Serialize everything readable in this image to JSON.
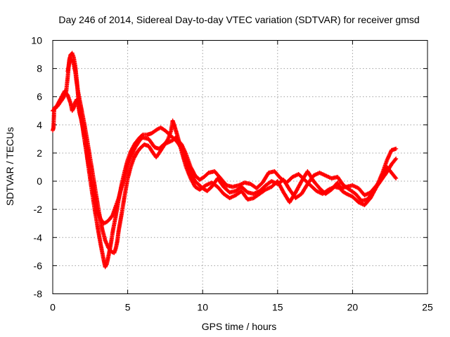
{
  "chart_data": {
    "type": "scatter",
    "title": "Day 246 of 2014, Sidereal Day-to-day VTEC variation (SDTVAR) for receiver gmsd",
    "xlabel": "GPS time / hours",
    "ylabel": "SDTVAR / TECUs",
    "xlim": [
      0,
      25
    ],
    "ylim": [
      -8,
      10
    ],
    "xticks": [
      0,
      5,
      10,
      15,
      20,
      25
    ],
    "yticks": [
      -8,
      -6,
      -4,
      -2,
      0,
      2,
      4,
      6,
      8,
      10
    ],
    "grid": true,
    "legend": "none",
    "marker": "+",
    "series": [
      {
        "name": "track-a",
        "color": "#ff0000",
        "points": [
          [
            0,
            3.6
          ],
          [
            0.05,
            3.8
          ],
          [
            0.1,
            5.2
          ],
          [
            0.3,
            5.3
          ],
          [
            0.5,
            5.6
          ],
          [
            0.7,
            5.9
          ],
          [
            0.9,
            6.4
          ],
          [
            1.0,
            7.4
          ],
          [
            1.1,
            8.6
          ],
          [
            1.2,
            9.0
          ],
          [
            1.3,
            9.1
          ],
          [
            1.4,
            8.8
          ],
          [
            1.5,
            8.2
          ],
          [
            1.6,
            7.2
          ],
          [
            1.7,
            6.0
          ],
          [
            1.8,
            5.0
          ],
          [
            2.0,
            3.8
          ],
          [
            2.2,
            2.4
          ],
          [
            2.4,
            0.9
          ],
          [
            2.6,
            -0.6
          ],
          [
            2.8,
            -2.0
          ],
          [
            3.0,
            -3.3
          ],
          [
            3.2,
            -4.5
          ],
          [
            3.4,
            -5.6
          ],
          [
            3.5,
            -6.1
          ],
          [
            3.6,
            -5.9
          ],
          [
            3.7,
            -5.4
          ],
          [
            3.8,
            -4.9
          ],
          [
            3.9,
            -4.3
          ],
          [
            4.0,
            -3.6
          ],
          [
            4.2,
            -2.5
          ],
          [
            4.4,
            -1.3
          ],
          [
            4.6,
            -0.2
          ],
          [
            4.8,
            0.7
          ],
          [
            5.0,
            1.5
          ],
          [
            5.2,
            2.1
          ],
          [
            5.5,
            2.7
          ],
          [
            5.8,
            3.1
          ],
          [
            6.0,
            3.3
          ],
          [
            6.3,
            3.3
          ],
          [
            6.6,
            3.4
          ],
          [
            7.0,
            3.7
          ],
          [
            7.2,
            3.8
          ],
          [
            7.5,
            3.6
          ],
          [
            7.8,
            3.3
          ],
          [
            8.0,
            3.1
          ],
          [
            8.3,
            2.8
          ],
          [
            8.6,
            2.3
          ],
          [
            8.9,
            1.5
          ],
          [
            9.2,
            0.6
          ],
          [
            9.5,
            0.0
          ],
          [
            9.8,
            -0.3
          ],
          [
            10.0,
            -0.5
          ],
          [
            10.3,
            -0.7
          ],
          [
            10.6,
            -0.4
          ],
          [
            11.0,
            0.2
          ],
          [
            11.4,
            -0.4
          ],
          [
            11.8,
            -0.8
          ],
          [
            12.2,
            -0.7
          ],
          [
            12.6,
            -0.4
          ],
          [
            13.0,
            -0.8
          ],
          [
            13.4,
            -0.9
          ],
          [
            13.8,
            -0.7
          ],
          [
            14.2,
            -0.3
          ],
          [
            14.6,
            0.0
          ],
          [
            15.0,
            -0.2
          ],
          [
            15.4,
            0.1
          ],
          [
            15.8,
            -0.6
          ],
          [
            16.2,
            -1.2
          ],
          [
            16.6,
            -0.9
          ],
          [
            17.0,
            -0.2
          ],
          [
            17.4,
            0.4
          ],
          [
            17.8,
            0.6
          ],
          [
            18.2,
            0.4
          ],
          [
            18.6,
            0.2
          ],
          [
            19.0,
            0.3
          ],
          [
            19.4,
            -0.3
          ],
          [
            19.8,
            -0.6
          ],
          [
            20.2,
            -0.9
          ],
          [
            20.6,
            -1.4
          ],
          [
            21.0,
            -1.3
          ],
          [
            21.4,
            -0.7
          ],
          [
            21.8,
            -0.1
          ],
          [
            22.2,
            0.5
          ],
          [
            22.6,
            1.2
          ],
          [
            22.9,
            1.6
          ]
        ]
      },
      {
        "name": "track-b",
        "color": "#ff0000",
        "points": [
          [
            0.0,
            5.0
          ],
          [
            0.2,
            5.2
          ],
          [
            0.4,
            5.6
          ],
          [
            0.6,
            6.0
          ],
          [
            0.8,
            6.4
          ],
          [
            1.0,
            6.1
          ],
          [
            1.2,
            5.5
          ],
          [
            1.3,
            5.0
          ],
          [
            1.4,
            5.2
          ],
          [
            1.5,
            5.6
          ],
          [
            1.6,
            5.8
          ],
          [
            1.7,
            5.4
          ],
          [
            1.8,
            4.8
          ],
          [
            1.9,
            4.4
          ],
          [
            2.0,
            3.9
          ],
          [
            2.1,
            3.1
          ],
          [
            2.2,
            2.4
          ],
          [
            2.4,
            1.2
          ],
          [
            2.6,
            0.0
          ],
          [
            2.8,
            -1.2
          ],
          [
            3.0,
            -2.2
          ],
          [
            3.2,
            -2.7
          ],
          [
            3.4,
            -3.0
          ],
          [
            3.6,
            -2.9
          ],
          [
            3.8,
            -2.7
          ],
          [
            4.0,
            -2.4
          ],
          [
            4.1,
            -2.1
          ],
          [
            4.2,
            -1.8
          ],
          [
            4.4,
            -1.2
          ],
          [
            4.6,
            -0.4
          ],
          [
            4.8,
            0.3
          ],
          [
            5.0,
            1.1
          ],
          [
            5.2,
            1.7
          ],
          [
            5.5,
            2.4
          ],
          [
            5.8,
            2.9
          ],
          [
            6.0,
            3.1
          ],
          [
            6.4,
            3.0
          ],
          [
            6.8,
            2.4
          ],
          [
            7.1,
            2.3
          ],
          [
            7.4,
            2.6
          ],
          [
            7.8,
            2.8
          ],
          [
            8.0,
            2.9
          ],
          [
            8.2,
            3.1
          ],
          [
            8.6,
            2.6
          ],
          [
            8.9,
            1.9
          ],
          [
            9.2,
            1.0
          ],
          [
            9.5,
            0.4
          ],
          [
            9.8,
            0.1
          ],
          [
            10.1,
            0.3
          ],
          [
            10.4,
            0.6
          ],
          [
            10.8,
            0.7
          ],
          [
            11.2,
            0.2
          ],
          [
            11.6,
            -0.3
          ],
          [
            12.0,
            -0.4
          ],
          [
            12.4,
            -0.3
          ],
          [
            12.8,
            -0.1
          ],
          [
            13.2,
            -0.2
          ],
          [
            13.6,
            -0.5
          ],
          [
            14.0,
            -0.1
          ],
          [
            14.4,
            0.6
          ],
          [
            14.8,
            0.7
          ],
          [
            15.2,
            0.2
          ],
          [
            15.6,
            -0.1
          ],
          [
            16.0,
            0.3
          ],
          [
            16.4,
            0.5
          ],
          [
            16.8,
            0.1
          ],
          [
            17.2,
            -0.3
          ],
          [
            17.6,
            -0.7
          ],
          [
            18.0,
            -0.9
          ],
          [
            18.4,
            -0.6
          ],
          [
            18.8,
            -0.4
          ],
          [
            19.2,
            -0.5
          ],
          [
            19.6,
            -0.4
          ],
          [
            20.0,
            -0.3
          ],
          [
            20.4,
            -0.5
          ],
          [
            20.8,
            -1.0
          ],
          [
            21.2,
            -0.8
          ],
          [
            21.6,
            -0.3
          ],
          [
            22.0,
            0.3
          ],
          [
            22.3,
            1.0
          ],
          [
            22.6,
            0.6
          ],
          [
            22.9,
            0.2
          ]
        ]
      },
      {
        "name": "track-c",
        "color": "#ff0000",
        "points": [
          [
            1.0,
            7.8
          ],
          [
            1.1,
            8.4
          ],
          [
            1.2,
            8.7
          ],
          [
            1.3,
            8.6
          ],
          [
            1.4,
            8.3
          ],
          [
            1.5,
            7.8
          ],
          [
            1.6,
            7.0
          ],
          [
            1.7,
            6.3
          ],
          [
            1.9,
            5.2
          ],
          [
            2.1,
            4.1
          ],
          [
            2.3,
            2.9
          ],
          [
            2.5,
            1.6
          ],
          [
            2.7,
            0.3
          ],
          [
            2.9,
            -1.0
          ],
          [
            3.1,
            -2.3
          ],
          [
            3.3,
            -3.4
          ],
          [
            3.5,
            -4.2
          ],
          [
            3.7,
            -4.7
          ],
          [
            3.9,
            -5.0
          ],
          [
            4.1,
            -5.1
          ],
          [
            4.2,
            -4.8
          ],
          [
            4.3,
            -4.3
          ],
          [
            4.4,
            -3.5
          ],
          [
            4.6,
            -2.3
          ],
          [
            4.8,
            -1.0
          ],
          [
            5.0,
            0.2
          ],
          [
            5.2,
            1.0
          ],
          [
            5.4,
            1.6
          ],
          [
            5.6,
            2.0
          ],
          [
            5.8,
            2.3
          ],
          [
            6.1,
            2.6
          ],
          [
            6.4,
            2.5
          ],
          [
            6.7,
            2.0
          ],
          [
            6.9,
            1.7
          ],
          [
            7.1,
            2.0
          ],
          [
            7.4,
            2.5
          ],
          [
            7.7,
            3.0
          ],
          [
            7.9,
            3.6
          ],
          [
            8.0,
            4.3
          ],
          [
            8.1,
            4.0
          ],
          [
            8.3,
            3.3
          ],
          [
            8.6,
            2.1
          ],
          [
            8.9,
            1.0
          ],
          [
            9.2,
            0.2
          ],
          [
            9.5,
            -0.4
          ],
          [
            9.8,
            -0.6
          ],
          [
            10.2,
            -0.3
          ],
          [
            10.6,
            -0.1
          ],
          [
            11.0,
            -0.4
          ],
          [
            11.4,
            -0.9
          ],
          [
            11.8,
            -1.2
          ],
          [
            12.2,
            -1.0
          ],
          [
            12.6,
            -0.7
          ],
          [
            13.0,
            -1.3
          ],
          [
            13.4,
            -1.2
          ],
          [
            13.8,
            -0.9
          ],
          [
            14.2,
            -0.6
          ],
          [
            14.6,
            -0.4
          ],
          [
            15.0,
            0.0
          ],
          [
            15.4,
            -0.8
          ],
          [
            15.8,
            -1.5
          ],
          [
            16.2,
            -0.8
          ],
          [
            16.6,
            0.0
          ],
          [
            17.0,
            0.7
          ],
          [
            17.4,
            0.0
          ],
          [
            17.8,
            -0.5
          ],
          [
            18.2,
            -0.9
          ],
          [
            18.6,
            -0.6
          ],
          [
            19.0,
            -0.1
          ],
          [
            19.3,
            -0.7
          ],
          [
            19.6,
            -0.9
          ],
          [
            20.0,
            -1.1
          ],
          [
            20.4,
            -1.5
          ],
          [
            20.8,
            -1.7
          ],
          [
            21.2,
            -1.2
          ],
          [
            21.6,
            -0.4
          ],
          [
            22.0,
            0.6
          ],
          [
            22.3,
            1.5
          ],
          [
            22.6,
            2.2
          ],
          [
            22.9,
            2.3
          ]
        ]
      }
    ]
  }
}
